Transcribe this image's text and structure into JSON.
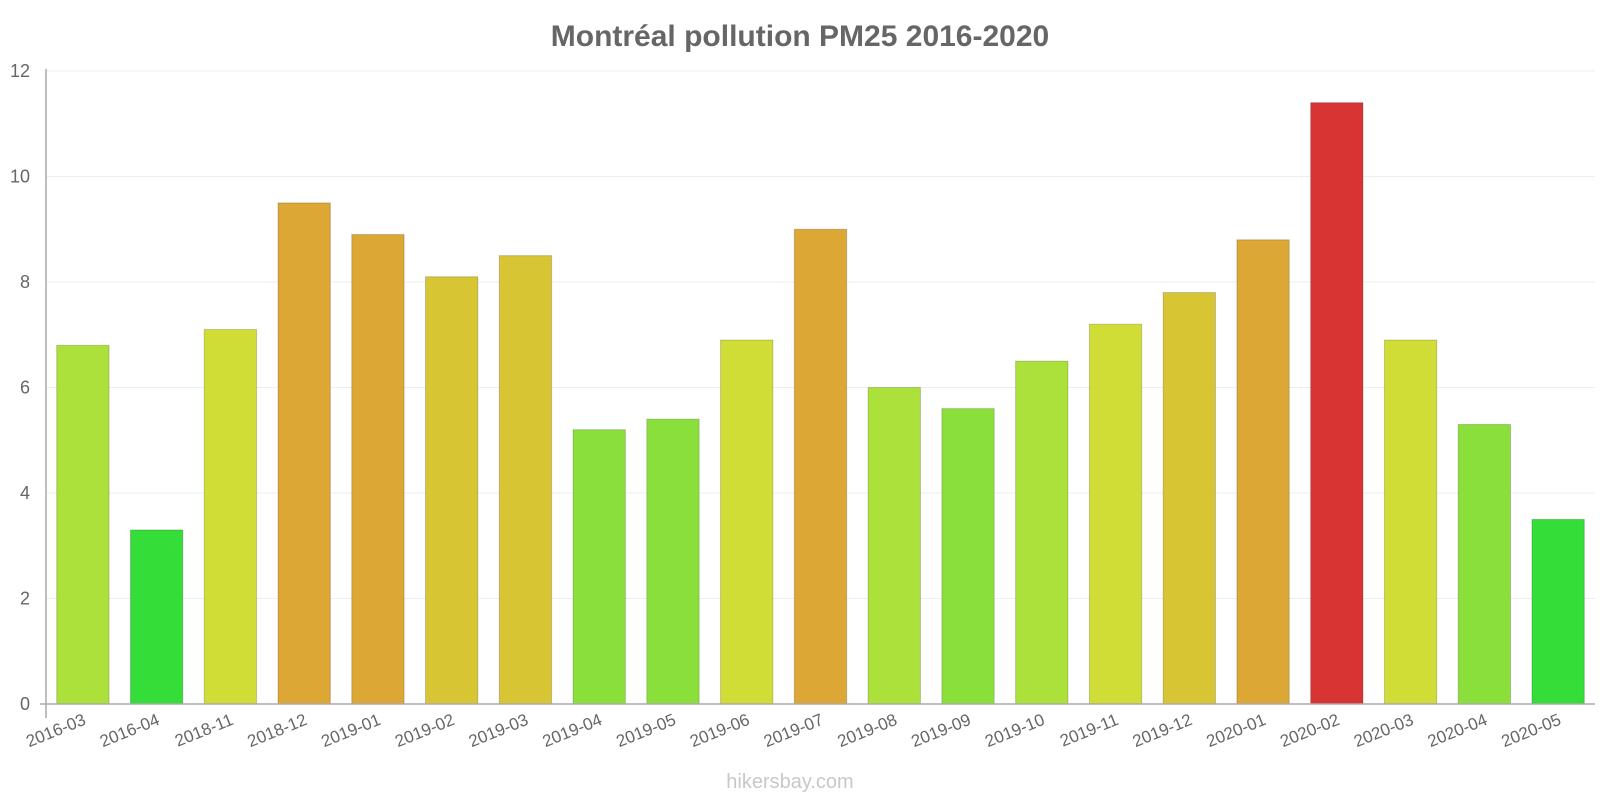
{
  "chart_data": {
    "type": "bar",
    "title": "Montréal pollution PM25 2016-2020",
    "xlabel": "",
    "ylabel": "",
    "ylim": [
      0,
      12
    ],
    "yticks": [
      0,
      2,
      4,
      6,
      8,
      10,
      12
    ],
    "grid": true,
    "categories": [
      "2016-03",
      "2016-04",
      "2018-11",
      "2018-12",
      "2019-01",
      "2019-02",
      "2019-03",
      "2019-04",
      "2019-05",
      "2019-06",
      "2019-07",
      "2019-08",
      "2019-09",
      "2019-10",
      "2019-11",
      "2019-12",
      "2020-01",
      "2020-02",
      "2020-03",
      "2020-04",
      "2020-05"
    ],
    "values": [
      6.8,
      3.3,
      7.1,
      9.5,
      8.9,
      8.1,
      8.5,
      5.2,
      5.4,
      6.9,
      9.0,
      6.0,
      5.6,
      6.5,
      7.2,
      7.8,
      8.8,
      11.4,
      6.9,
      5.3,
      3.5
    ],
    "colors": [
      "#ace03a",
      "#34dd38",
      "#cfdd36",
      "#dca734",
      "#dca734",
      "#d8c534",
      "#d8c534",
      "#8adf3a",
      "#8adf3a",
      "#cfdd36",
      "#dca734",
      "#ace03a",
      "#8adf3a",
      "#ace03a",
      "#cfdd36",
      "#d8c534",
      "#dca734",
      "#d93434",
      "#cfdd36",
      "#8adf3a",
      "#34dd38"
    ]
  },
  "watermark": "hikersbay.com"
}
